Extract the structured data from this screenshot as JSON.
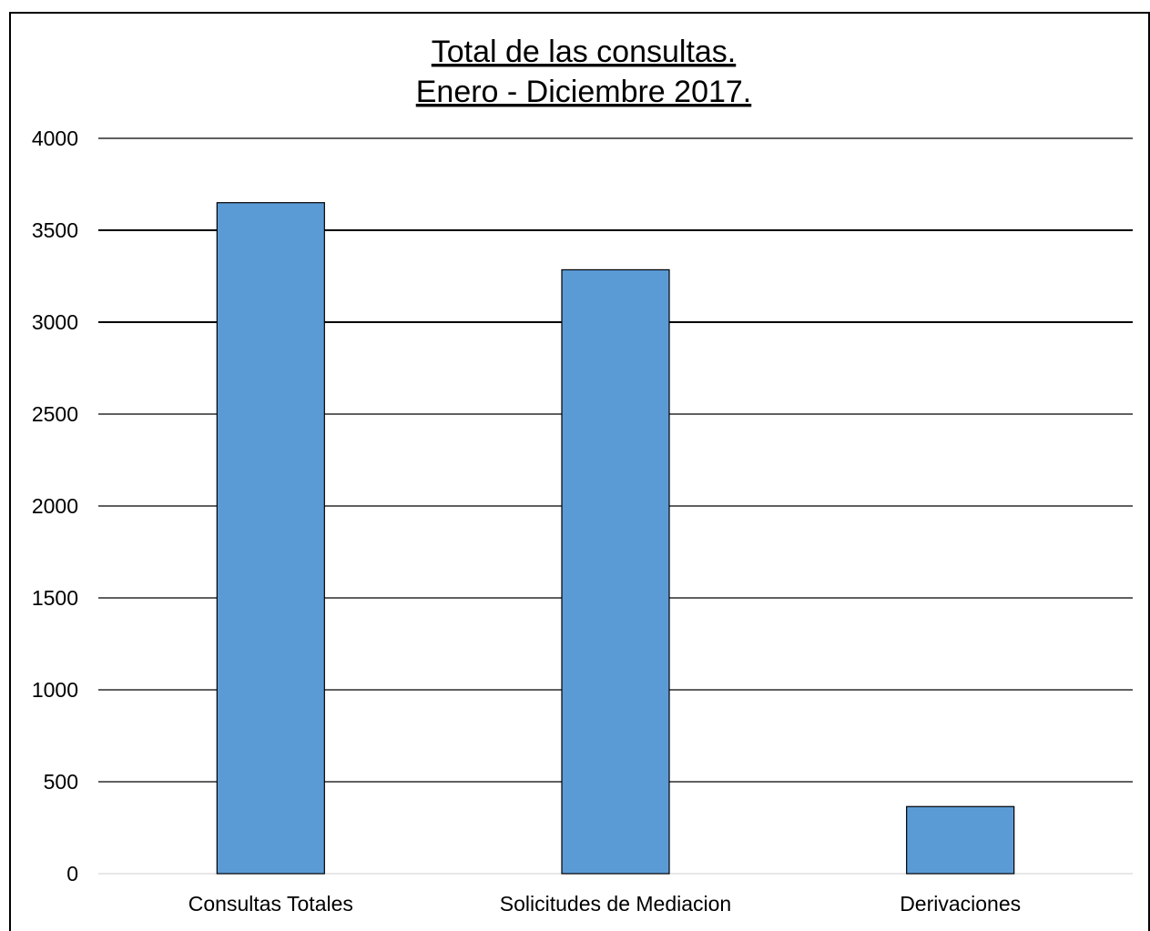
{
  "chart_data": {
    "type": "bar",
    "title_lines": [
      "Total de las consultas.",
      "Enero - Diciembre 2017."
    ],
    "categories": [
      "Consultas Totales",
      "Solicitudes de Mediacion",
      "Derivaciones"
    ],
    "values": [
      3650,
      3285,
      365
    ],
    "xlabel": "",
    "ylabel": "",
    "ylim": [
      0,
      4000
    ],
    "yticks": [
      "0",
      "500",
      "1000",
      "1500",
      "2000",
      "2500",
      "3000",
      "3500",
      "4000"
    ],
    "grid": true,
    "legend": "none",
    "bar_color": "#5b9bd5",
    "bar_border_color": "#000000"
  }
}
